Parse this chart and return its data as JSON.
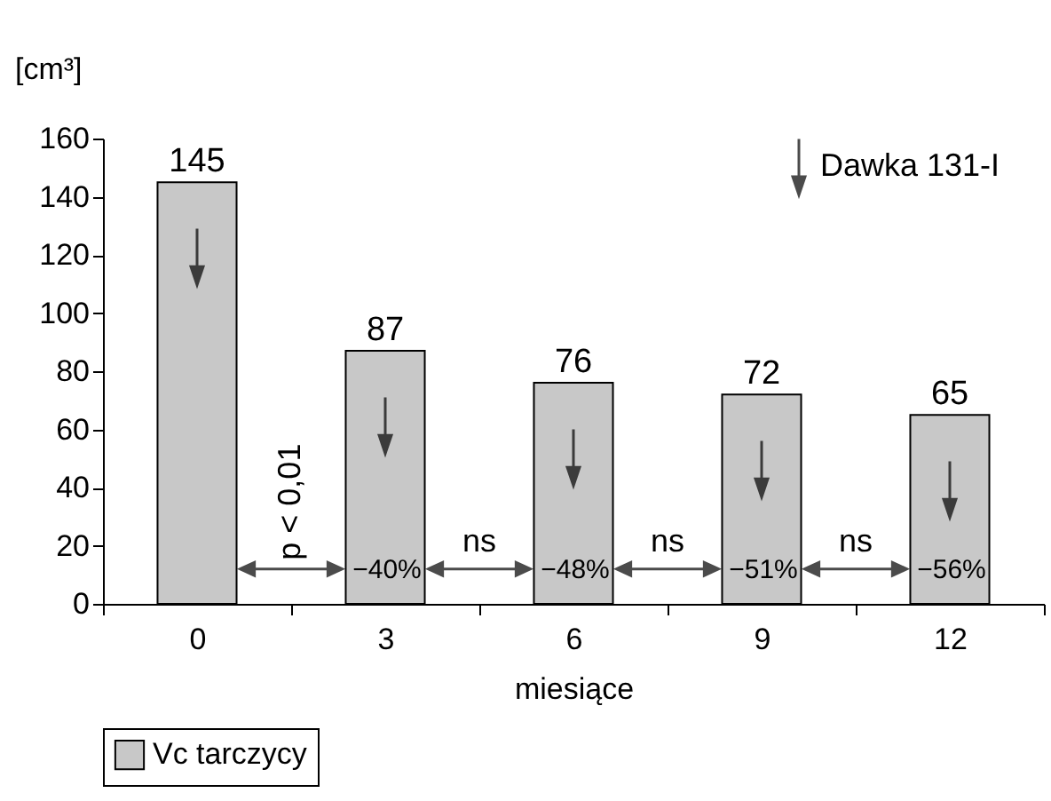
{
  "chart_data": {
    "type": "bar",
    "xlabel": "miesiące",
    "ylabel": "[cm³]",
    "categories": [
      "0",
      "3",
      "6",
      "9",
      "12"
    ],
    "series": [
      {
        "name": "Vc tarczycy",
        "color": "#c8c8c8",
        "values": [
          145,
          87,
          76,
          72,
          65
        ]
      }
    ],
    "ylim": [
      0,
      160
    ],
    "yticks": [
      0,
      20,
      40,
      60,
      80,
      100,
      120,
      140,
      160
    ],
    "data_labels": true,
    "legend": "bottom",
    "grid": false,
    "annotations": [
      "p < 0,01",
      "−40%",
      "ns",
      "−48%",
      "ns",
      "−51%",
      "ns",
      "−56%",
      "Dawka 131-I"
    ]
  }
}
